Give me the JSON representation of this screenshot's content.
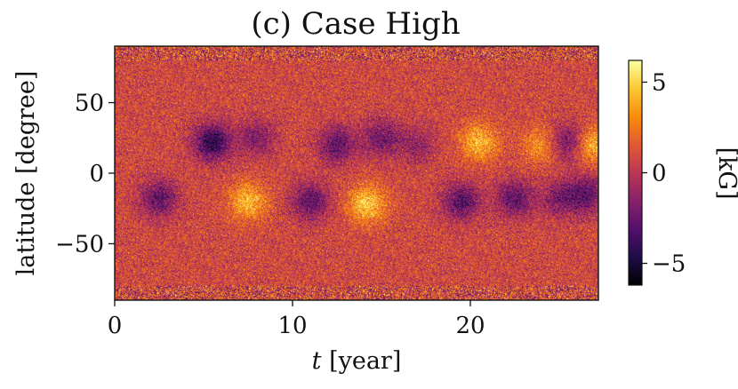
{
  "chart_data": {
    "type": "heatmap",
    "title": "(c) Case High",
    "xlabel_italic": "t",
    "xlabel_rest": " [year]",
    "ylabel": "latitude [degree]",
    "xlim": [
      0,
      27.2
    ],
    "ylim": [
      -90,
      90
    ],
    "x_ticks": [
      0,
      10,
      20
    ],
    "x_tick_labels": [
      "0",
      "10",
      "20"
    ],
    "y_ticks": [
      50,
      0,
      -50
    ],
    "y_tick_labels": [
      "50",
      "0",
      "−50"
    ],
    "colorbar": {
      "label": "[kG]",
      "range": [
        -6.2,
        6.2
      ],
      "ticks": [
        5,
        0,
        -5
      ],
      "tick_labels": [
        "5",
        "0",
        "−5"
      ],
      "colormap": [
        "#000000",
        "#1f0c48",
        "#550f6d",
        "#88226a",
        "#ba3655",
        "#e35933",
        "#f98c0a",
        "#f9c932",
        "#fcffa4"
      ]
    },
    "magnetic_patches": [
      {
        "t": 5.5,
        "lat": 22,
        "value": -5.0
      },
      {
        "t": 2.5,
        "lat": -18,
        "value": -3.5
      },
      {
        "t": 7.5,
        "lat": -20,
        "value": 3.5
      },
      {
        "t": 8.0,
        "lat": 25,
        "value": -2.5
      },
      {
        "t": 11.0,
        "lat": -20,
        "value": -3.5
      },
      {
        "t": 12.5,
        "lat": 20,
        "value": -3.5
      },
      {
        "t": 14.2,
        "lat": -22,
        "value": 4.0
      },
      {
        "t": 15.0,
        "lat": 25,
        "value": -3.0
      },
      {
        "t": 17.0,
        "lat": 20,
        "value": -2.0
      },
      {
        "t": 20.5,
        "lat": 22,
        "value": 3.5
      },
      {
        "t": 19.5,
        "lat": -20,
        "value": -3.8
      },
      {
        "t": 22.5,
        "lat": -18,
        "value": -3.5
      },
      {
        "t": 24.0,
        "lat": 20,
        "value": 2.5
      },
      {
        "t": 25.5,
        "lat": 22,
        "value": -3.5
      },
      {
        "t": 26.8,
        "lat": 20,
        "value": 3.5
      },
      {
        "t": 26.5,
        "lat": -15,
        "value": -3.5
      },
      {
        "t": 25.0,
        "lat": -18,
        "value": -2.5
      }
    ],
    "background_value": 0.8
  }
}
